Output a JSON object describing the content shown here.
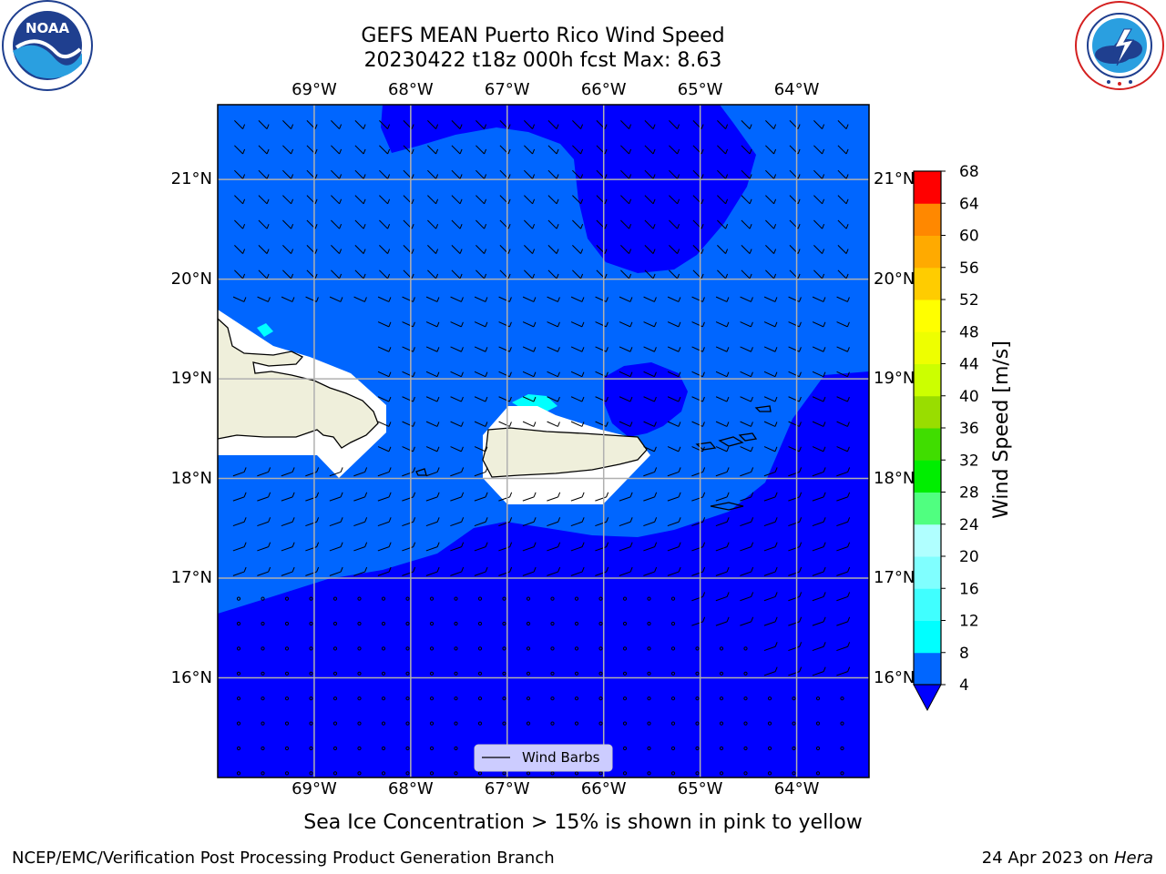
{
  "title_line1": "GEFS MEAN Puerto Rico Wind Speed",
  "title_line2": "20230422 t18z 000h fcst   Max: 8.63",
  "logos": {
    "left_name": "NOAA",
    "left_ring": "NATIONAL OCEANIC AND ATMOSPHERIC ADMINISTRATION · U.S. DEPARTMENT OF COMMERCE",
    "right_ring": "NATIONAL WEATHER SERVICE"
  },
  "map": {
    "lon_labels": [
      "69°W",
      "68°W",
      "67°W",
      "66°W",
      "65°W",
      "64°W"
    ],
    "lat_labels": [
      "21°N",
      "20°N",
      "19°N",
      "18°N",
      "17°N",
      "16°N"
    ],
    "lon_values": [
      -69,
      -68,
      -67,
      -66,
      -65,
      -64
    ],
    "lat_values": [
      21,
      20,
      19,
      18,
      17,
      16
    ],
    "extent": {
      "lon_min": -70,
      "lon_max": -63.25,
      "lat_min": 15,
      "lat_max": 21.75
    },
    "legend_label": "Wind Barbs",
    "colors": {
      "band_4_8": "#0066ff",
      "band_lt_4": "#0000ff",
      "band_8_12": "#00ffff",
      "land": "#efefdb",
      "no_data": "#ffffff",
      "grid": "#b0b0b0"
    }
  },
  "colorbar": {
    "label": "Wind Speed [m/s]",
    "ticks": [
      "68",
      "64",
      "60",
      "56",
      "52",
      "48",
      "44",
      "40",
      "36",
      "32",
      "28",
      "24",
      "20",
      "16",
      "12",
      "8",
      "4"
    ],
    "colors": [
      "#0066ff",
      "#00ffff",
      "#40ffff",
      "#80ffff",
      "#b0ffff",
      "#50ff80",
      "#00ee00",
      "#40dd00",
      "#99dd00",
      "#ccff00",
      "#eeff00",
      "#ffff00",
      "#ffcc00",
      "#ffaa00",
      "#ff8800",
      "#ff5500",
      "#ff2200",
      "#ff0000"
    ],
    "extend_color": "#0000ff"
  },
  "caption": "Sea Ice Concentration > 15% is shown in pink to yellow",
  "footer_left": "NCEP/EMC/Verification Post Processing Product Generation Branch",
  "footer_right_prefix": "24 Apr 2023 on ",
  "footer_right_host": "Hera"
}
